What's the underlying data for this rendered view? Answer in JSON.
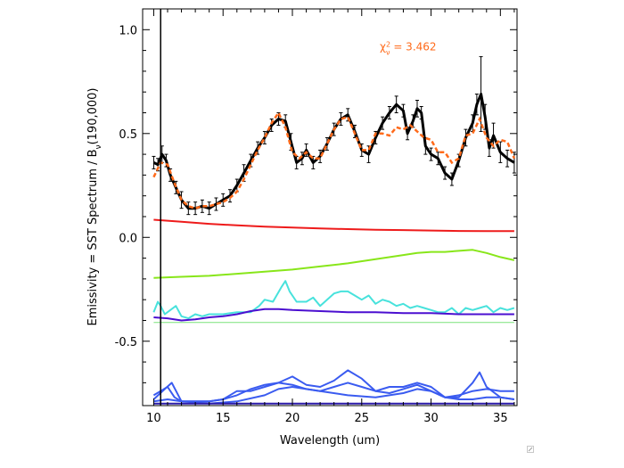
{
  "chart_data": {
    "type": "line",
    "xlabel": "Wavelength (um)",
    "ylabel": "Emissivity   = SST Spectrum / B",
    "ylabel_sub": "ν",
    "ylabel_tail": "(190,000)",
    "xlim": [
      9.2,
      36.2
    ],
    "ylim": [
      -0.81,
      1.1
    ],
    "x_ticks": [
      10,
      15,
      20,
      25,
      30,
      35
    ],
    "x_tick_labels": [
      "10",
      "15",
      "20",
      "25",
      "30",
      "35"
    ],
    "y_ticks": [
      -0.5,
      0.0,
      0.5,
      1.0
    ],
    "y_tick_labels": [
      "-0.5",
      "0.0",
      "0.5",
      "1.0"
    ],
    "annotation": {
      "chi": "χ",
      "sup": "2",
      "sub": "ν",
      "text": " = 3.462",
      "x": 26.3,
      "y": 0.9,
      "color": "#ff6a1a"
    },
    "vertical_line_x": 10.5,
    "observed": {
      "name": "SST spectrum (with error bars)",
      "color": "#000000",
      "x": [
        10.0,
        10.3,
        10.6,
        10.9,
        11.2,
        11.6,
        12.0,
        12.5,
        13.0,
        13.5,
        14.0,
        14.5,
        15.0,
        15.5,
        16.0,
        16.5,
        17.0,
        17.5,
        18.0,
        18.5,
        19.0,
        19.5,
        19.9,
        20.3,
        20.7,
        21.0,
        21.5,
        22.0,
        22.5,
        23.0,
        23.5,
        24.0,
        24.5,
        25.0,
        25.5,
        26.0,
        26.5,
        27.0,
        27.5,
        28.0,
        28.3,
        28.7,
        29.0,
        29.3,
        29.6,
        30.0,
        30.5,
        31.0,
        31.5,
        32.0,
        32.5,
        33.0,
        33.3,
        33.6,
        33.9,
        34.2,
        34.5,
        35.0,
        35.5,
        36.0
      ],
      "y": [
        0.36,
        0.35,
        0.4,
        0.37,
        0.3,
        0.24,
        0.18,
        0.14,
        0.14,
        0.15,
        0.14,
        0.16,
        0.18,
        0.2,
        0.25,
        0.31,
        0.37,
        0.43,
        0.48,
        0.54,
        0.57,
        0.56,
        0.46,
        0.36,
        0.38,
        0.42,
        0.36,
        0.39,
        0.45,
        0.52,
        0.57,
        0.59,
        0.51,
        0.42,
        0.4,
        0.48,
        0.55,
        0.6,
        0.64,
        0.61,
        0.5,
        0.56,
        0.62,
        0.6,
        0.44,
        0.4,
        0.38,
        0.31,
        0.28,
        0.37,
        0.48,
        0.55,
        0.64,
        0.69,
        0.58,
        0.43,
        0.49,
        0.41,
        0.38,
        0.36
      ],
      "errors": [
        0.03,
        0.03,
        0.04,
        0.03,
        0.03,
        0.03,
        0.04,
        0.03,
        0.03,
        0.03,
        0.03,
        0.03,
        0.03,
        0.03,
        0.03,
        0.04,
        0.03,
        0.03,
        0.03,
        0.03,
        0.03,
        0.03,
        0.04,
        0.03,
        0.03,
        0.03,
        0.03,
        0.03,
        0.03,
        0.03,
        0.03,
        0.03,
        0.03,
        0.03,
        0.04,
        0.03,
        0.03,
        0.03,
        0.04,
        0.03,
        0.03,
        0.03,
        0.04,
        0.03,
        0.04,
        0.03,
        0.03,
        0.03,
        0.03,
        0.03,
        0.04,
        0.04,
        0.05,
        0.18,
        0.06,
        0.04,
        0.06,
        0.05,
        0.04,
        0.05
      ]
    },
    "fit": {
      "name": "model fit",
      "color": "#ff6a1a",
      "x": [
        10.0,
        10.5,
        11.0,
        11.5,
        12.0,
        12.5,
        13.0,
        13.5,
        14.0,
        14.5,
        15.0,
        15.5,
        16.0,
        16.5,
        17.0,
        17.5,
        18.0,
        18.5,
        19.0,
        19.5,
        20.0,
        20.5,
        21.0,
        21.5,
        22.0,
        22.5,
        23.0,
        23.5,
        24.0,
        24.5,
        25.0,
        25.5,
        26.0,
        26.5,
        27.0,
        27.5,
        28.0,
        28.5,
        29.0,
        29.5,
        30.0,
        30.5,
        31.0,
        31.5,
        32.0,
        32.5,
        33.0,
        33.5,
        34.0,
        34.5,
        35.0,
        35.5,
        36.0
      ],
      "y": [
        0.29,
        0.36,
        0.35,
        0.26,
        0.18,
        0.15,
        0.14,
        0.15,
        0.15,
        0.16,
        0.17,
        0.19,
        0.22,
        0.28,
        0.35,
        0.42,
        0.48,
        0.55,
        0.6,
        0.53,
        0.41,
        0.38,
        0.41,
        0.38,
        0.38,
        0.45,
        0.52,
        0.57,
        0.58,
        0.5,
        0.42,
        0.42,
        0.5,
        0.5,
        0.49,
        0.53,
        0.52,
        0.54,
        0.51,
        0.48,
        0.47,
        0.41,
        0.41,
        0.36,
        0.38,
        0.49,
        0.5,
        0.57,
        0.48,
        0.44,
        0.47,
        0.46,
        0.38
      ]
    },
    "series": [
      {
        "name": "red component",
        "color": "#ee1b1b",
        "width": 2,
        "x": [
          10,
          12,
          14,
          16,
          18,
          20,
          22,
          24,
          26,
          28,
          30,
          32,
          34,
          36
        ],
        "y": [
          0.085,
          0.075,
          0.065,
          0.058,
          0.052,
          0.047,
          0.043,
          0.04,
          0.037,
          0.035,
          0.033,
          0.031,
          0.03,
          0.03
        ]
      },
      {
        "name": "yellow-green component",
        "color": "#88e61a",
        "width": 2,
        "x": [
          10,
          12,
          14,
          16,
          18,
          20,
          22,
          24,
          26,
          28,
          29,
          30,
          31,
          32,
          33,
          34,
          35,
          36
        ],
        "y": [
          -0.195,
          -0.19,
          -0.185,
          -0.175,
          -0.165,
          -0.155,
          -0.14,
          -0.125,
          -0.105,
          -0.085,
          -0.075,
          -0.07,
          -0.07,
          -0.065,
          -0.06,
          -0.075,
          -0.095,
          -0.11
        ]
      },
      {
        "name": "cyan component",
        "color": "#48e2dc",
        "width": 2,
        "x": [
          10,
          10.3,
          10.5,
          10.8,
          11.2,
          11.6,
          12,
          12.5,
          13,
          13.5,
          14,
          15,
          16,
          17,
          17.6,
          18,
          18.6,
          19.2,
          19.5,
          19.8,
          20.3,
          21,
          21.5,
          22,
          22.5,
          23,
          23.5,
          24,
          24.5,
          25,
          25.5,
          26,
          26.5,
          27,
          27.5,
          28,
          28.5,
          29,
          29.5,
          30,
          30.5,
          31,
          31.5,
          32,
          32.5,
          33,
          33.5,
          34,
          34.5,
          35,
          35.5,
          36
        ],
        "y": [
          -0.36,
          -0.31,
          -0.33,
          -0.37,
          -0.35,
          -0.33,
          -0.38,
          -0.39,
          -0.37,
          -0.38,
          -0.37,
          -0.37,
          -0.36,
          -0.36,
          -0.33,
          -0.3,
          -0.31,
          -0.24,
          -0.21,
          -0.26,
          -0.31,
          -0.31,
          -0.29,
          -0.33,
          -0.3,
          -0.27,
          -0.26,
          -0.26,
          -0.28,
          -0.3,
          -0.28,
          -0.32,
          -0.3,
          -0.31,
          -0.33,
          -0.32,
          -0.34,
          -0.33,
          -0.34,
          -0.35,
          -0.36,
          -0.36,
          -0.34,
          -0.37,
          -0.34,
          -0.35,
          -0.34,
          -0.33,
          -0.36,
          -0.34,
          -0.35,
          -0.34
        ]
      },
      {
        "name": "purple component",
        "color": "#4b0fd0",
        "width": 2,
        "x": [
          10,
          11,
          12,
          13,
          14,
          15,
          16,
          17,
          18,
          19,
          20,
          22,
          24,
          26,
          28,
          30,
          32,
          34,
          36
        ],
        "y": [
          -0.385,
          -0.39,
          -0.4,
          -0.395,
          -0.385,
          -0.38,
          -0.37,
          -0.355,
          -0.345,
          -0.345,
          -0.35,
          -0.355,
          -0.36,
          -0.36,
          -0.365,
          -0.365,
          -0.37,
          -0.37,
          -0.37
        ]
      },
      {
        "name": "thin green baseline",
        "color": "#7ae27a",
        "width": 1,
        "x": [
          10,
          36
        ],
        "y": [
          -0.41,
          -0.41
        ]
      },
      {
        "name": "blue component 1",
        "color": "#3a5bf0",
        "width": 2,
        "x": [
          10,
          10.5,
          11,
          11.5,
          12,
          13,
          14,
          15,
          16,
          17,
          18,
          19,
          20,
          21,
          22,
          23,
          24,
          25,
          26,
          27,
          28,
          29,
          30,
          31,
          32,
          33,
          34,
          35,
          36
        ],
        "y": [
          -0.76,
          -0.74,
          -0.72,
          -0.77,
          -0.79,
          -0.79,
          -0.79,
          -0.78,
          -0.76,
          -0.73,
          -0.71,
          -0.7,
          -0.71,
          -0.73,
          -0.74,
          -0.72,
          -0.7,
          -0.72,
          -0.74,
          -0.75,
          -0.73,
          -0.71,
          -0.74,
          -0.77,
          -0.76,
          -0.74,
          -0.73,
          -0.74,
          -0.74
        ]
      },
      {
        "name": "blue component 2",
        "color": "#3a5bf0",
        "width": 2,
        "x": [
          10,
          11,
          12,
          13,
          14,
          15,
          16,
          17,
          18,
          19,
          20,
          21,
          22,
          23,
          24,
          25,
          26,
          27,
          28,
          29,
          30,
          31,
          32,
          33,
          33.5,
          34,
          35,
          36
        ],
        "y": [
          -0.79,
          -0.78,
          -0.79,
          -0.79,
          -0.79,
          -0.78,
          -0.74,
          -0.74,
          -0.72,
          -0.7,
          -0.67,
          -0.71,
          -0.72,
          -0.69,
          -0.64,
          -0.68,
          -0.74,
          -0.72,
          -0.72,
          -0.7,
          -0.72,
          -0.77,
          -0.77,
          -0.7,
          -0.65,
          -0.72,
          -0.77,
          -0.78
        ]
      },
      {
        "name": "blue component 3",
        "color": "#3a5bf0",
        "width": 2,
        "x": [
          10,
          10.8,
          11.3,
          12,
          14,
          16,
          18,
          19,
          20,
          22,
          24,
          26,
          28,
          29,
          30,
          31,
          32,
          33,
          34,
          35,
          36
        ],
        "y": [
          -0.78,
          -0.73,
          -0.7,
          -0.79,
          -0.8,
          -0.79,
          -0.76,
          -0.73,
          -0.72,
          -0.74,
          -0.76,
          -0.77,
          -0.75,
          -0.73,
          -0.74,
          -0.77,
          -0.78,
          -0.78,
          -0.77,
          -0.77,
          -0.78
        ]
      },
      {
        "name": "navy component",
        "color": "#2a1aa8",
        "width": 2,
        "x": [
          10,
          14,
          18,
          22,
          26,
          30,
          34,
          36
        ],
        "y": [
          -0.8,
          -0.8,
          -0.8,
          -0.8,
          -0.8,
          -0.8,
          -0.8,
          -0.8
        ]
      }
    ]
  }
}
